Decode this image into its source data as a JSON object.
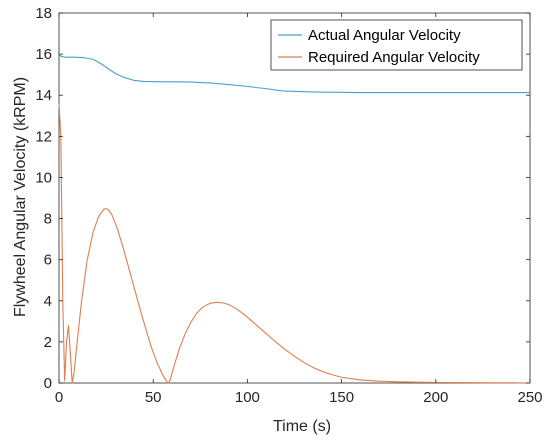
{
  "chart_data": {
    "type": "line",
    "title": "",
    "xlabel": "Time (s)",
    "ylabel": "Flywheel Angular Velocity (kRPM)",
    "xlim": [
      0,
      250
    ],
    "ylim": [
      0,
      18
    ],
    "xticks": [
      0,
      50,
      100,
      150,
      200,
      250
    ],
    "yticks": [
      0,
      2,
      4,
      6,
      8,
      10,
      12,
      14,
      16,
      18
    ],
    "grid": false,
    "legend_position": "top-right",
    "series": [
      {
        "name": "Actual Angular Velocity",
        "color": "#4a9fd0",
        "x": [
          0,
          1,
          3,
          8,
          13,
          18,
          22,
          26,
          30,
          35,
          40,
          45,
          50,
          55,
          60,
          70,
          80,
          90,
          100,
          105,
          110,
          115,
          120,
          130,
          140,
          150,
          160,
          170,
          180,
          200,
          220,
          250
        ],
        "y": [
          16.0,
          15.9,
          15.85,
          15.85,
          15.83,
          15.75,
          15.55,
          15.3,
          15.05,
          14.85,
          14.72,
          14.67,
          14.66,
          14.65,
          14.65,
          14.64,
          14.6,
          14.52,
          14.43,
          14.37,
          14.32,
          14.25,
          14.2,
          14.17,
          14.15,
          14.14,
          14.13,
          14.13,
          14.13,
          14.13,
          14.13,
          14.13
        ]
      },
      {
        "name": "Required Angular Velocity",
        "color": "#dd7f50",
        "x": [
          0,
          1,
          2,
          3,
          4,
          5,
          6,
          7,
          8,
          10,
          12,
          15,
          18,
          21,
          24,
          26,
          28,
          31,
          34,
          37,
          40,
          43,
          46,
          49,
          52,
          55,
          57,
          58,
          59,
          60,
          62,
          64,
          67,
          70,
          73,
          76,
          80,
          84,
          88,
          91,
          94,
          97,
          100,
          105,
          110,
          115,
          120,
          125,
          130,
          135,
          140,
          145,
          150,
          160,
          170,
          180,
          190,
          200,
          210,
          220,
          230,
          240,
          250
        ],
        "y": [
          13.6,
          12.0,
          4.0,
          0.1,
          2.0,
          2.8,
          1.5,
          0.0,
          0.5,
          2.3,
          4.0,
          6.0,
          7.3,
          8.1,
          8.48,
          8.45,
          8.2,
          7.5,
          6.6,
          5.6,
          4.6,
          3.6,
          2.65,
          1.75,
          1.0,
          0.4,
          0.1,
          0.0,
          0.15,
          0.5,
          1.1,
          1.7,
          2.4,
          2.95,
          3.38,
          3.67,
          3.87,
          3.93,
          3.88,
          3.78,
          3.62,
          3.42,
          3.2,
          2.8,
          2.4,
          2.0,
          1.63,
          1.3,
          1.0,
          0.75,
          0.55,
          0.4,
          0.28,
          0.15,
          0.09,
          0.06,
          0.04,
          0.03,
          0.02,
          0.015,
          0.01,
          0.01,
          0.0
        ]
      }
    ]
  }
}
